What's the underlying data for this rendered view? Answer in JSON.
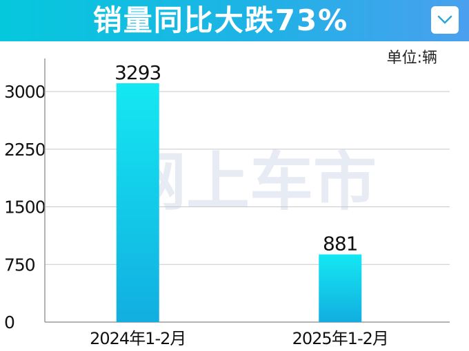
{
  "header": {
    "title": "销量同比大跌73%"
  },
  "unit_label": "单位:辆",
  "watermark": "网上车市",
  "chart_data": {
    "type": "bar",
    "categories": [
      "2024年1-2月",
      "2025年1-2月"
    ],
    "values": [
      3293,
      881
    ],
    "value_labels": [
      "3293",
      "881"
    ],
    "yticks": [
      0,
      750,
      1500,
      2250,
      3000
    ],
    "ylim": [
      0,
      3400
    ],
    "grid": true,
    "bar_color_top": "#14e8f2",
    "bar_color_bottom": "#12aee0"
  }
}
